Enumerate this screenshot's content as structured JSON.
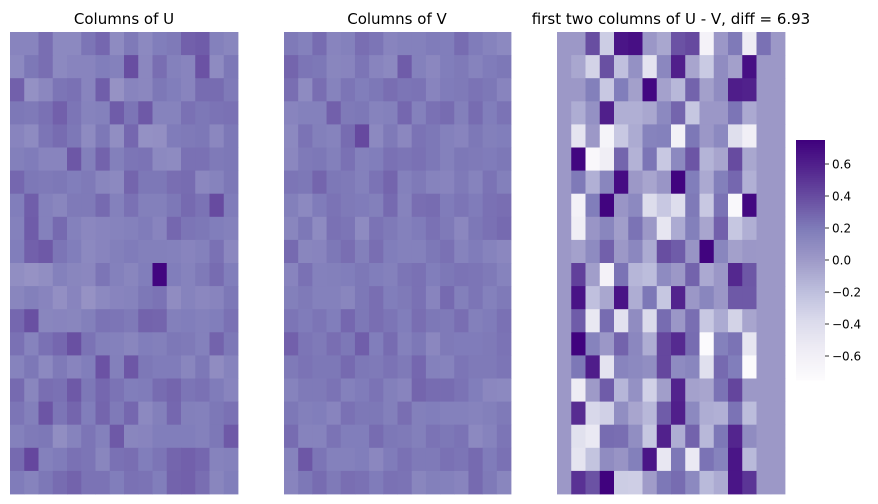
{
  "chart_data": [
    {
      "type": "heatmap",
      "title": "Columns of U",
      "xlabel": "",
      "ylabel": "",
      "colormap": "Purples",
      "vmin": -0.75,
      "vmax": 0.75,
      "colorbar": false,
      "rows": 20,
      "cols": 16,
      "values": [
        [
          0.14,
          0.14,
          0.25,
          0.11,
          0.11,
          0.22,
          0.28,
          0.1,
          0.2,
          0.11,
          0.18,
          0.2,
          0.31,
          0.33,
          0.16,
          0.13
        ],
        [
          0.11,
          0.21,
          0.25,
          0.11,
          0.14,
          0.14,
          0.18,
          0.16,
          0.39,
          0.12,
          0.25,
          0.16,
          0.14,
          0.37,
          0.1,
          0.21
        ],
        [
          0.31,
          0.06,
          0.12,
          0.22,
          0.24,
          0.14,
          0.32,
          0.05,
          0.14,
          0.12,
          0.21,
          0.18,
          0.14,
          0.26,
          0.26,
          0.2
        ],
        [
          0.21,
          0.2,
          0.24,
          0.31,
          0.22,
          0.15,
          0.16,
          0.33,
          0.22,
          0.34,
          0.15,
          0.15,
          0.24,
          0.21,
          0.23,
          0.24
        ],
        [
          0.14,
          0.1,
          0.22,
          0.26,
          0.21,
          0.1,
          0.21,
          0.08,
          0.28,
          0.06,
          0.07,
          0.19,
          0.2,
          0.21,
          0.12,
          0.21
        ],
        [
          0.17,
          0.19,
          0.14,
          0.14,
          0.35,
          0.17,
          0.3,
          0.17,
          0.22,
          0.23,
          0.11,
          0.1,
          0.24,
          0.24,
          0.2,
          0.21
        ],
        [
          0.28,
          0.21,
          0.2,
          0.21,
          0.18,
          0.2,
          0.13,
          0.11,
          0.29,
          0.21,
          0.21,
          0.25,
          0.26,
          0.12,
          0.15,
          0.21
        ],
        [
          0.18,
          0.32,
          0.16,
          0.13,
          0.2,
          0.2,
          0.27,
          0.16,
          0.24,
          0.17,
          0.17,
          0.21,
          0.27,
          0.23,
          0.4,
          0.19
        ],
        [
          0.16,
          0.33,
          0.16,
          0.27,
          0.16,
          0.12,
          0.14,
          0.15,
          0.16,
          0.19,
          0.14,
          0.28,
          0.22,
          0.21,
          0.18,
          0.16
        ],
        [
          0.18,
          0.31,
          0.34,
          0.22,
          0.18,
          0.11,
          0.14,
          0.17,
          0.19,
          0.17,
          0.17,
          0.16,
          0.14,
          0.16,
          0.24,
          0.12
        ],
        [
          0.08,
          0.05,
          0.08,
          0.16,
          0.13,
          0.12,
          0.22,
          0.16,
          0.13,
          0.18,
          0.72,
          0.18,
          0.15,
          0.2,
          0.26,
          0.18
        ],
        [
          0.13,
          0.17,
          0.14,
          0.07,
          0.14,
          0.05,
          0.11,
          0.14,
          0.15,
          0.21,
          0.23,
          0.09,
          0.15,
          0.12,
          0.14,
          0.21
        ],
        [
          0.28,
          0.38,
          0.13,
          0.14,
          0.13,
          0.17,
          0.23,
          0.22,
          0.2,
          0.3,
          0.29,
          0.17,
          0.18,
          0.16,
          0.18,
          0.24
        ],
        [
          0.24,
          0.15,
          0.24,
          0.28,
          0.38,
          0.23,
          0.17,
          0.16,
          0.13,
          0.18,
          0.17,
          0.21,
          0.2,
          0.16,
          0.3,
          0.21
        ],
        [
          0.15,
          0.21,
          0.11,
          0.2,
          0.14,
          0.18,
          0.37,
          0.17,
          0.35,
          0.21,
          0.19,
          0.19,
          0.13,
          0.21,
          0.09,
          0.15
        ],
        [
          0.27,
          0.13,
          0.25,
          0.24,
          0.34,
          0.21,
          0.28,
          0.23,
          0.18,
          0.19,
          0.26,
          0.29,
          0.22,
          0.24,
          0.19,
          0.14
        ],
        [
          0.22,
          0.17,
          0.36,
          0.22,
          0.29,
          0.18,
          0.29,
          0.2,
          0.28,
          0.11,
          0.17,
          0.28,
          0.17,
          0.16,
          0.21,
          0.24
        ],
        [
          0.16,
          0.2,
          0.21,
          0.08,
          0.15,
          0.22,
          0.16,
          0.34,
          0.13,
          0.14,
          0.18,
          0.18,
          0.18,
          0.16,
          0.21,
          0.34
        ],
        [
          0.27,
          0.42,
          0.16,
          0.19,
          0.24,
          0.22,
          0.13,
          0.24,
          0.25,
          0.18,
          0.22,
          0.29,
          0.31,
          0.28,
          0.15,
          0.16
        ],
        [
          0.19,
          0.15,
          0.21,
          0.26,
          0.3,
          0.23,
          0.23,
          0.18,
          0.24,
          0.23,
          0.18,
          0.3,
          0.31,
          0.25,
          0.13,
          0.18
        ]
      ]
    },
    {
      "type": "heatmap",
      "title": "Columns of V",
      "xlabel": "",
      "ylabel": "",
      "colormap": "Purples",
      "vmin": -0.75,
      "vmax": 0.75,
      "colorbar": false,
      "rows": 20,
      "cols": 16,
      "values": [
        [
          0.2,
          0.16,
          0.26,
          0.14,
          0.16,
          0.25,
          0.22,
          0.14,
          0.16,
          0.16,
          0.19,
          0.18,
          0.26,
          0.19,
          0.15,
          0.11
        ],
        [
          0.29,
          0.22,
          0.21,
          0.13,
          0.14,
          0.22,
          0.14,
          0.11,
          0.33,
          0.16,
          0.12,
          0.18,
          0.2,
          0.15,
          0.19,
          0.21
        ],
        [
          0.25,
          0.1,
          0.25,
          0.15,
          0.22,
          0.18,
          0.21,
          0.25,
          0.22,
          0.23,
          0.14,
          0.19,
          0.2,
          0.23,
          0.21,
          0.14
        ],
        [
          0.14,
          0.16,
          0.16,
          0.31,
          0.2,
          0.21,
          0.15,
          0.16,
          0.28,
          0.16,
          0.24,
          0.26,
          0.17,
          0.26,
          0.18,
          0.23
        ],
        [
          0.11,
          0.23,
          0.17,
          0.15,
          0.26,
          0.41,
          0.11,
          0.2,
          0.12,
          0.23,
          0.21,
          0.16,
          0.14,
          0.21,
          0.17,
          0.18
        ],
        [
          0.12,
          0.2,
          0.21,
          0.17,
          0.24,
          0.16,
          0.18,
          0.24,
          0.22,
          0.24,
          0.21,
          0.16,
          0.21,
          0.2,
          0.19,
          0.21
        ],
        [
          0.22,
          0.21,
          0.29,
          0.21,
          0.2,
          0.16,
          0.23,
          0.29,
          0.16,
          0.2,
          0.15,
          0.14,
          0.2,
          0.15,
          0.23,
          0.17
        ],
        [
          0.17,
          0.11,
          0.19,
          0.23,
          0.2,
          0.19,
          0.17,
          0.27,
          0.15,
          0.25,
          0.26,
          0.19,
          0.22,
          0.19,
          0.24,
          0.25
        ],
        [
          0.13,
          0.21,
          0.1,
          0.24,
          0.22,
          0.1,
          0.23,
          0.2,
          0.16,
          0.19,
          0.24,
          0.2,
          0.12,
          0.21,
          0.24,
          0.27
        ],
        [
          0.27,
          0.13,
          0.14,
          0.21,
          0.25,
          0.17,
          0.25,
          0.18,
          0.16,
          0.16,
          0.21,
          0.24,
          0.15,
          0.19,
          0.15,
          0.12
        ],
        [
          0.14,
          0.24,
          0.16,
          0.17,
          0.18,
          0.21,
          0.18,
          0.16,
          0.22,
          0.24,
          0.18,
          0.21,
          0.23,
          0.22,
          0.2,
          0.15
        ],
        [
          0.17,
          0.2,
          0.16,
          0.16,
          0.13,
          0.21,
          0.25,
          0.18,
          0.2,
          0.24,
          0.14,
          0.27,
          0.17,
          0.22,
          0.16,
          0.2
        ],
        [
          0.22,
          0.19,
          0.22,
          0.18,
          0.28,
          0.21,
          0.25,
          0.22,
          0.18,
          0.25,
          0.21,
          0.2,
          0.25,
          0.17,
          0.19,
          0.24
        ],
        [
          0.31,
          0.22,
          0.2,
          0.25,
          0.21,
          0.32,
          0.18,
          0.26,
          0.16,
          0.21,
          0.12,
          0.2,
          0.19,
          0.19,
          0.2,
          0.23
        ],
        [
          0.2,
          0.23,
          0.21,
          0.21,
          0.27,
          0.21,
          0.2,
          0.23,
          0.2,
          0.28,
          0.16,
          0.15,
          0.22,
          0.2,
          0.2,
          0.22
        ],
        [
          0.15,
          0.2,
          0.2,
          0.23,
          0.16,
          0.19,
          0.23,
          0.17,
          0.14,
          0.29,
          0.26,
          0.26,
          0.23,
          0.18,
          0.12,
          0.11
        ],
        [
          0.21,
          0.17,
          0.18,
          0.14,
          0.24,
          0.21,
          0.21,
          0.17,
          0.25,
          0.17,
          0.18,
          0.16,
          0.16,
          0.15,
          0.17,
          0.2
        ],
        [
          0.26,
          0.15,
          0.15,
          0.23,
          0.18,
          0.18,
          0.26,
          0.21,
          0.2,
          0.17,
          0.23,
          0.21,
          0.23,
          0.11,
          0.15,
          0.22
        ],
        [
          0.15,
          0.35,
          0.22,
          0.16,
          0.16,
          0.18,
          0.12,
          0.19,
          0.24,
          0.2,
          0.2,
          0.24,
          0.22,
          0.27,
          0.19,
          0.24
        ],
        [
          0.14,
          0.21,
          0.26,
          0.2,
          0.25,
          0.24,
          0.19,
          0.24,
          0.23,
          0.13,
          0.17,
          0.16,
          0.14,
          0.27,
          0.2,
          0.13
        ]
      ]
    },
    {
      "type": "heatmap",
      "title": "first two columns of U - V, diff = 6.93",
      "xlabel": "",
      "ylabel": "",
      "colormap": "Purples",
      "vmin": -0.75,
      "vmax": 0.75,
      "colorbar": true,
      "colorbar_ticks": [
        "0.6",
        "0.4",
        "0.2",
        "0.0",
        "−0.2",
        "−0.4",
        "−0.6"
      ],
      "colorbar_tick_values": [
        0.6,
        0.4,
        0.2,
        0.0,
        -0.2,
        -0.4,
        -0.6
      ],
      "rows": 20,
      "cols": 16,
      "values": [
        [
          0.01,
          0.01,
          0.39,
          -0.29,
          0.65,
          0.68,
          0.02,
          -0.07,
          0.37,
          0.41,
          -0.63,
          0.02,
          0.2,
          -0.55,
          0.24,
          0.01
        ],
        [
          0.01,
          -0.07,
          -0.33,
          0.38,
          -0.21,
          0.06,
          -0.46,
          0.12,
          0.6,
          -0.06,
          -0.27,
          0.09,
          -0.03,
          0.68,
          0.01,
          0.01
        ],
        [
          0.01,
          0.01,
          0.17,
          -0.26,
          0.18,
          -0.03,
          0.71,
          -0.04,
          -0.16,
          0.3,
          -0.03,
          0.09,
          0.61,
          0.59,
          0.01,
          0.01
        ],
        [
          0.01,
          -0.1,
          0.06,
          0.6,
          -0.11,
          -0.11,
          -0.07,
          0.11,
          0.29,
          -0.25,
          0.02,
          0.02,
          0.22,
          -0.08,
          0.01,
          0.01
        ],
        [
          0.01,
          -0.47,
          0.01,
          -0.65,
          -0.26,
          -0.09,
          0.15,
          0.16,
          -0.62,
          0.21,
          0.02,
          0.11,
          -0.42,
          -0.59,
          0.01,
          0.01
        ],
        [
          0.01,
          0.72,
          -0.7,
          -0.57,
          0.29,
          -0.13,
          0.22,
          -0.26,
          0.11,
          0.36,
          -0.14,
          -0.06,
          0.4,
          -0.07,
          0.01,
          0.01
        ],
        [
          0.01,
          0.2,
          -0.12,
          0.13,
          0.69,
          0.01,
          -0.06,
          0.03,
          0.73,
          0.18,
          -0.08,
          0.17,
          0.28,
          -0.12,
          0.01,
          0.01
        ],
        [
          0.01,
          -0.62,
          0.18,
          0.73,
          0.03,
          0.11,
          -0.4,
          -0.26,
          -0.41,
          0.2,
          -0.26,
          0.23,
          -0.71,
          0.71,
          0.01,
          0.01
        ],
        [
          0.01,
          -0.57,
          0.03,
          0.13,
          -0.02,
          0.23,
          0.01,
          -0.49,
          -0.09,
          0.17,
          -0.06,
          0.31,
          -0.25,
          -0.11,
          0.01,
          0.01
        ],
        [
          0.01,
          -0.04,
          0.1,
          0.31,
          0.01,
          0.12,
          -0.09,
          0.39,
          0.33,
          0.04,
          0.73,
          0.13,
          -0.03,
          0.02,
          0.01,
          0.01
        ],
        [
          0.01,
          0.45,
          -0.02,
          -0.63,
          0.23,
          -0.15,
          -0.19,
          0.1,
          0.01,
          0.3,
          -0.08,
          0.02,
          0.56,
          0.35,
          0.01,
          0.01
        ],
        [
          0.01,
          0.66,
          -0.21,
          -0.07,
          0.66,
          -0.1,
          0.21,
          -0.25,
          0.58,
          0.02,
          0.13,
          0.02,
          0.34,
          0.34,
          0.01,
          0.01
        ],
        [
          0.01,
          0.33,
          -0.51,
          0.26,
          -0.45,
          0.09,
          -0.38,
          0.26,
          0.02,
          0.25,
          -0.26,
          -0.09,
          -0.33,
          -0.06,
          0.01,
          0.01
        ],
        [
          0.01,
          0.74,
          0.15,
          0.02,
          0.3,
          0.12,
          -0.1,
          0.42,
          0.55,
          0.26,
          -0.74,
          0.16,
          0.23,
          -0.49,
          0.01,
          0.01
        ],
        [
          0.01,
          0.21,
          0.61,
          -0.46,
          0.14,
          0.11,
          0.08,
          0.42,
          0.1,
          0.13,
          -0.43,
          0.27,
          0.18,
          -0.73,
          0.01,
          0.01
        ],
        [
          0.01,
          -0.55,
          0.0,
          0.33,
          -0.15,
          0.06,
          -0.32,
          -0.02,
          0.58,
          -0.04,
          -0.06,
          0.23,
          0.43,
          0.01,
          0.01,
          0.01
        ],
        [
          0.01,
          0.54,
          -0.36,
          -0.31,
          0.08,
          -0.06,
          -0.16,
          0.33,
          0.6,
          0.11,
          -0.1,
          -0.12,
          0.23,
          -0.19,
          0.01,
          0.01
        ],
        [
          0.01,
          -0.44,
          -0.52,
          0.26,
          0.25,
          0.08,
          -0.25,
          0.59,
          -0.1,
          0.3,
          -0.16,
          0.21,
          0.57,
          0.09,
          0.01,
          0.01
        ],
        [
          0.01,
          -0.47,
          -0.23,
          0.09,
          0.04,
          0.17,
          0.65,
          -0.5,
          0.21,
          -0.52,
          0.23,
          0.15,
          0.65,
          -0.17,
          0.01,
          0.01
        ],
        [
          0.01,
          0.52,
          0.37,
          0.74,
          -0.29,
          -0.3,
          -0.01,
          0.21,
          0.26,
          0.11,
          -0.17,
          -0.09,
          0.65,
          0.5,
          0.01,
          0.01
        ]
      ]
    }
  ]
}
